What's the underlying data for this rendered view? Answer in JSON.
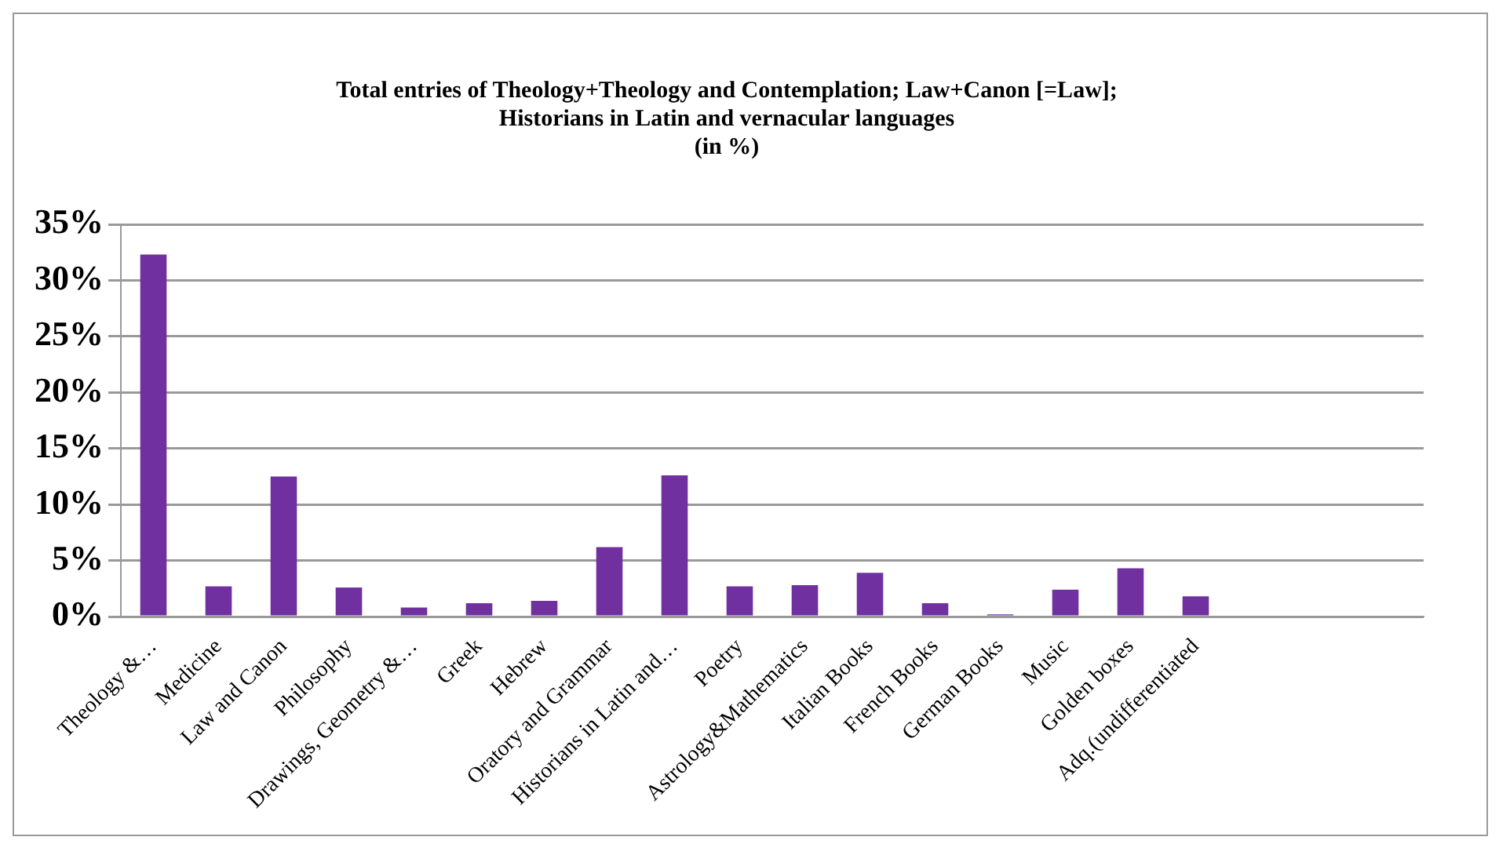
{
  "chart_data": {
    "type": "bar",
    "title": "Total entries of Theology+Theology and Contemplation; Law+Canon [=Law]; Historians in Latin and vernacular languages (in %)",
    "categories": [
      "Theology &…",
      "Medicine",
      "Law and Canon",
      "Philosophy",
      "Drawings, Geometry &…",
      "Greek",
      "Hebrew",
      "Oratory and Grammar",
      "Historians in Latin and…",
      "Poetry",
      "Astrology&Mathematics",
      "Italian Books",
      "French Books",
      "German Books",
      "Music",
      "Golden boxes",
      "Adq.(undifferentiated",
      null,
      null,
      null
    ],
    "values": [
      32.3,
      2.7,
      12.5,
      2.6,
      0.8,
      1.2,
      1.4,
      6.2,
      12.6,
      2.7,
      2.8,
      3.9,
      1.2,
      0.2,
      2.4,
      4.3,
      1.8,
      null,
      null,
      null
    ],
    "color": "#7030a0",
    "ylim": [
      0,
      35
    ],
    "yticks": [
      {
        "value": 0,
        "label": "0%"
      },
      {
        "value": 5,
        "label": "5%"
      },
      {
        "value": 10,
        "label": "10%"
      },
      {
        "value": 15,
        "label": "15%"
      },
      {
        "value": 20,
        "label": "20%"
      },
      {
        "value": 25,
        "label": "25%"
      },
      {
        "value": 30,
        "label": "30%"
      },
      {
        "value": 35,
        "label": "35%"
      }
    ],
    "grid": "y"
  }
}
